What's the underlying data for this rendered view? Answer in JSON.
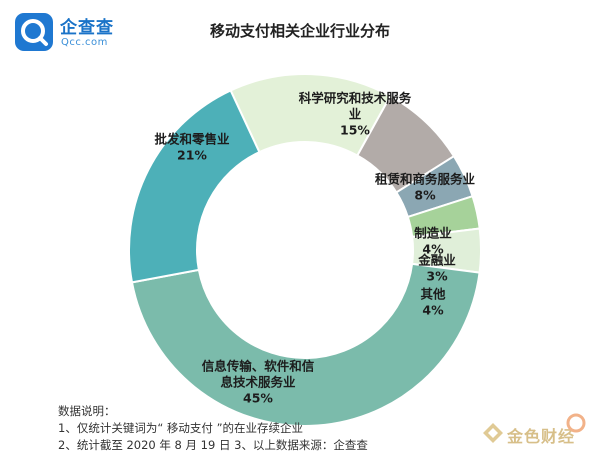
{
  "logo": {
    "cn": "企查查",
    "en": "Qcc.com"
  },
  "title": "移动支付相关企业行业分布",
  "chart_data": {
    "type": "pie",
    "title": "移动支付相关企业行业分布",
    "slices": [
      {
        "label": "科学研究和技术服务业",
        "display_lines": [
          "科学研究和技术服务",
          "业"
        ],
        "value": 15,
        "pct_label": "15%",
        "color": "#e3f1d8"
      },
      {
        "label": "租赁和商务服务业",
        "display_lines": [
          "租赁和商务服务业"
        ],
        "value": 8,
        "pct_label": "8%",
        "color": "#b2aba8"
      },
      {
        "label": "制造业",
        "display_lines": [
          "制造业"
        ],
        "value": 4,
        "pct_label": "4%",
        "color": "#8ba7b3"
      },
      {
        "label": "金融业",
        "display_lines": [
          "金融业"
        ],
        "value": 3,
        "pct_label": "3%",
        "color": "#a6d29a"
      },
      {
        "label": "其他",
        "display_lines": [
          "其他"
        ],
        "value": 4,
        "pct_label": "4%",
        "color": "#e0efd9"
      },
      {
        "label": "信息传输、软件和信息技术服务业",
        "display_lines": [
          "信息传输、软件和信",
          "息技术服务业"
        ],
        "value": 45,
        "pct_label": "45%",
        "color": "#7bbbab"
      },
      {
        "label": "批发和零售业",
        "display_lines": [
          "批发和零售业"
        ],
        "value": 21,
        "pct_label": "21%",
        "color": "#4db0b8"
      }
    ]
  },
  "notes": {
    "heading": "数据说明：",
    "line1": "1、仅统计关键词为“ 移动支付 ”的在业存续企业",
    "line2": "2、统计截至 2020 年 8 月 19 日   3、以上数据来源：企查查"
  },
  "watermark": {
    "text": "金色财经"
  }
}
